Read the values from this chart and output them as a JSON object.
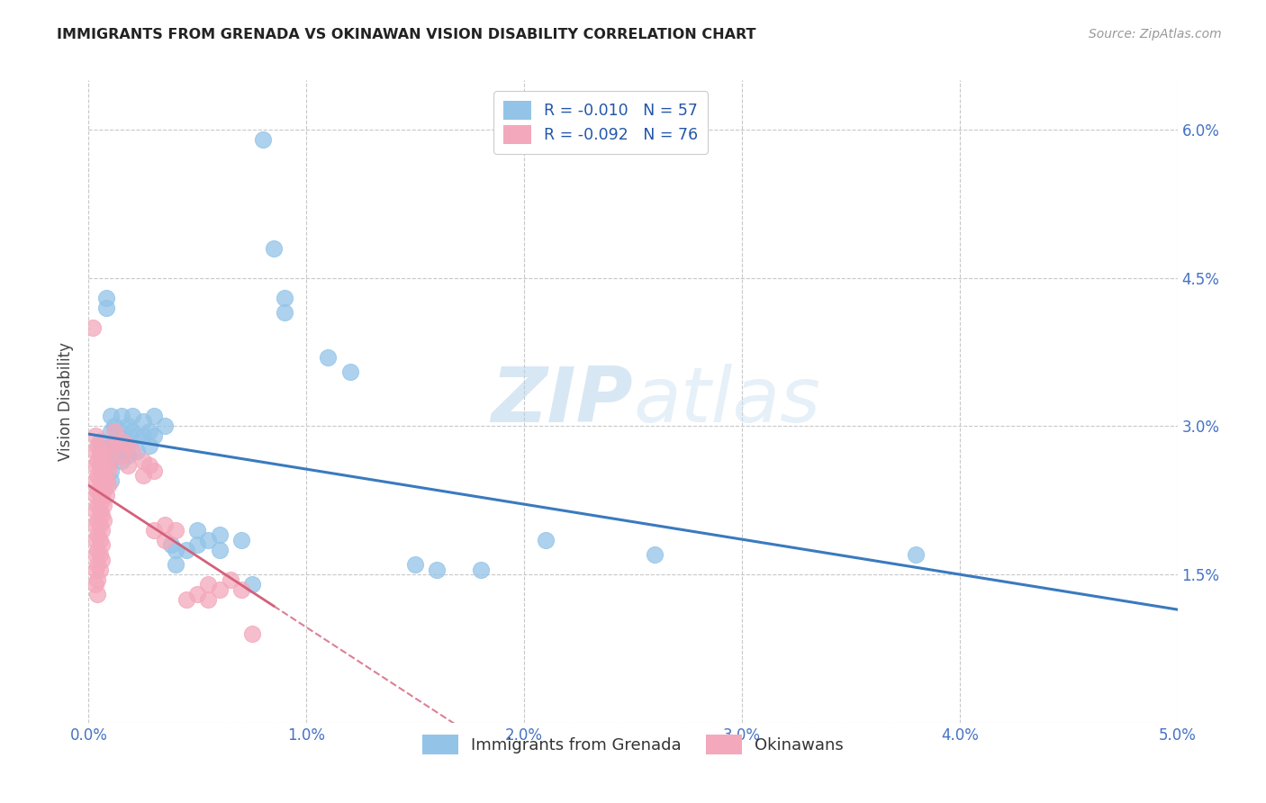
{
  "title": "IMMIGRANTS FROM GRENADA VS OKINAWAN VISION DISABILITY CORRELATION CHART",
  "source": "Source: ZipAtlas.com",
  "ylabel": "Vision Disability",
  "xlim": [
    0.0,
    0.05
  ],
  "ylim": [
    0.0,
    0.065
  ],
  "xticks": [
    0.0,
    0.01,
    0.02,
    0.03,
    0.04,
    0.05
  ],
  "xtick_labels": [
    "0.0%",
    "1.0%",
    "2.0%",
    "3.0%",
    "4.0%",
    "5.0%"
  ],
  "yticks": [
    0.0,
    0.015,
    0.03,
    0.045,
    0.06
  ],
  "ytick_labels": [
    "",
    "1.5%",
    "3.0%",
    "4.5%",
    "6.0%"
  ],
  "grid_color": "#c8c8c8",
  "background_color": "#ffffff",
  "blue_color": "#93c4e8",
  "pink_color": "#f4a8bb",
  "blue_label": "Immigrants from Grenada",
  "pink_label": "Okinawans",
  "blue_R": "-0.010",
  "blue_N": "57",
  "pink_R": "-0.092",
  "pink_N": "76",
  "watermark_text": "ZIP",
  "watermark_text2": "atlas",
  "blue_line_color": "#3a7abf",
  "pink_line_color": "#d4607a",
  "blue_points": [
    [
      0.0005,
      0.0285
    ],
    [
      0.0005,
      0.027
    ],
    [
      0.0005,
      0.026
    ],
    [
      0.0008,
      0.043
    ],
    [
      0.0008,
      0.042
    ],
    [
      0.001,
      0.031
    ],
    [
      0.001,
      0.0295
    ],
    [
      0.001,
      0.028
    ],
    [
      0.001,
      0.0265
    ],
    [
      0.001,
      0.0255
    ],
    [
      0.001,
      0.0245
    ],
    [
      0.0012,
      0.03
    ],
    [
      0.0012,
      0.0285
    ],
    [
      0.0012,
      0.027
    ],
    [
      0.0015,
      0.031
    ],
    [
      0.0015,
      0.0295
    ],
    [
      0.0015,
      0.028
    ],
    [
      0.0015,
      0.0265
    ],
    [
      0.0018,
      0.03
    ],
    [
      0.0018,
      0.0285
    ],
    [
      0.0018,
      0.027
    ],
    [
      0.002,
      0.031
    ],
    [
      0.002,
      0.0295
    ],
    [
      0.0022,
      0.029
    ],
    [
      0.0022,
      0.0275
    ],
    [
      0.0025,
      0.0305
    ],
    [
      0.0025,
      0.029
    ],
    [
      0.0028,
      0.0295
    ],
    [
      0.0028,
      0.028
    ],
    [
      0.003,
      0.031
    ],
    [
      0.003,
      0.029
    ],
    [
      0.0035,
      0.03
    ],
    [
      0.0038,
      0.018
    ],
    [
      0.004,
      0.0175
    ],
    [
      0.004,
      0.016
    ],
    [
      0.0045,
      0.0175
    ],
    [
      0.005,
      0.0195
    ],
    [
      0.005,
      0.018
    ],
    [
      0.0055,
      0.0185
    ],
    [
      0.006,
      0.019
    ],
    [
      0.006,
      0.0175
    ],
    [
      0.007,
      0.0185
    ],
    [
      0.0075,
      0.014
    ],
    [
      0.008,
      0.059
    ],
    [
      0.0085,
      0.048
    ],
    [
      0.009,
      0.043
    ],
    [
      0.009,
      0.0415
    ],
    [
      0.011,
      0.037
    ],
    [
      0.012,
      0.0355
    ],
    [
      0.015,
      0.016
    ],
    [
      0.016,
      0.0155
    ],
    [
      0.018,
      0.0155
    ],
    [
      0.021,
      0.0185
    ],
    [
      0.026,
      0.017
    ],
    [
      0.038,
      0.017
    ]
  ],
  "pink_points": [
    [
      0.0002,
      0.04
    ],
    [
      0.0003,
      0.029
    ],
    [
      0.0003,
      0.0275
    ],
    [
      0.0003,
      0.026
    ],
    [
      0.0003,
      0.0245
    ],
    [
      0.0003,
      0.023
    ],
    [
      0.0003,
      0.0215
    ],
    [
      0.0003,
      0.02
    ],
    [
      0.0003,
      0.0185
    ],
    [
      0.0003,
      0.017
    ],
    [
      0.0003,
      0.0155
    ],
    [
      0.0003,
      0.014
    ],
    [
      0.0004,
      0.028
    ],
    [
      0.0004,
      0.0265
    ],
    [
      0.0004,
      0.025
    ],
    [
      0.0004,
      0.0235
    ],
    [
      0.0004,
      0.022
    ],
    [
      0.0004,
      0.0205
    ],
    [
      0.0004,
      0.019
    ],
    [
      0.0004,
      0.0175
    ],
    [
      0.0004,
      0.016
    ],
    [
      0.0004,
      0.0145
    ],
    [
      0.0004,
      0.013
    ],
    [
      0.0005,
      0.0275
    ],
    [
      0.0005,
      0.026
    ],
    [
      0.0005,
      0.0245
    ],
    [
      0.0005,
      0.023
    ],
    [
      0.0005,
      0.0215
    ],
    [
      0.0005,
      0.02
    ],
    [
      0.0005,
      0.0185
    ],
    [
      0.0005,
      0.017
    ],
    [
      0.0005,
      0.0155
    ],
    [
      0.0006,
      0.027
    ],
    [
      0.0006,
      0.0255
    ],
    [
      0.0006,
      0.024
    ],
    [
      0.0006,
      0.0225
    ],
    [
      0.0006,
      0.021
    ],
    [
      0.0006,
      0.0195
    ],
    [
      0.0006,
      0.018
    ],
    [
      0.0006,
      0.0165
    ],
    [
      0.0007,
      0.0265
    ],
    [
      0.0007,
      0.025
    ],
    [
      0.0007,
      0.0235
    ],
    [
      0.0007,
      0.022
    ],
    [
      0.0007,
      0.0205
    ],
    [
      0.0008,
      0.026
    ],
    [
      0.0008,
      0.0245
    ],
    [
      0.0008,
      0.023
    ],
    [
      0.0009,
      0.0255
    ],
    [
      0.0009,
      0.024
    ],
    [
      0.001,
      0.028
    ],
    [
      0.001,
      0.0265
    ],
    [
      0.0012,
      0.0295
    ],
    [
      0.0012,
      0.028
    ],
    [
      0.0015,
      0.0285
    ],
    [
      0.0015,
      0.027
    ],
    [
      0.0018,
      0.028
    ],
    [
      0.0018,
      0.026
    ],
    [
      0.002,
      0.0275
    ],
    [
      0.0025,
      0.0265
    ],
    [
      0.0025,
      0.025
    ],
    [
      0.0028,
      0.026
    ],
    [
      0.003,
      0.0255
    ],
    [
      0.003,
      0.0195
    ],
    [
      0.0035,
      0.02
    ],
    [
      0.0035,
      0.0185
    ],
    [
      0.004,
      0.0195
    ],
    [
      0.0045,
      0.0125
    ],
    [
      0.005,
      0.013
    ],
    [
      0.0055,
      0.014
    ],
    [
      0.0055,
      0.0125
    ],
    [
      0.006,
      0.0135
    ],
    [
      0.0065,
      0.0145
    ],
    [
      0.007,
      0.0135
    ],
    [
      0.0075,
      0.009
    ]
  ]
}
